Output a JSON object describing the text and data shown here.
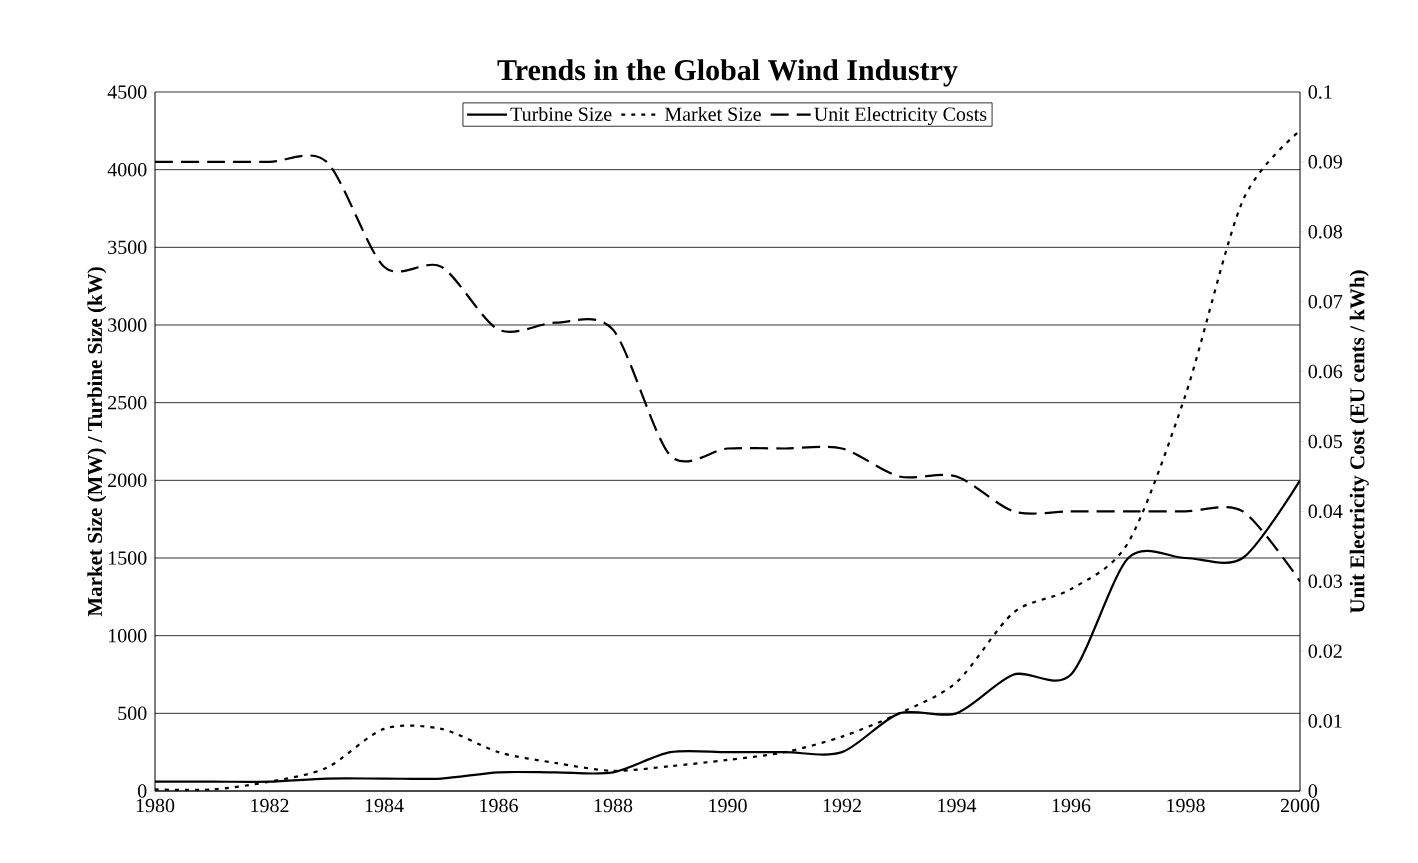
{
  "chart_data": {
    "type": "line",
    "title": "Trends in the Global Wind Industry",
    "ylabel": "Market Size (MW) / Turbine Size (kW)",
    "y2label": "Unit Electricity Cost (EU cents / kWh)",
    "x": [
      1980,
      1981,
      1982,
      1983,
      1984,
      1985,
      1986,
      1987,
      1988,
      1989,
      1990,
      1991,
      1992,
      1993,
      1994,
      1995,
      1996,
      1997,
      1998,
      1999,
      2000
    ],
    "series": [
      {
        "name": "Turbine Size",
        "color": "#000000",
        "line_style": "solid",
        "values": [
          60,
          60,
          60,
          80,
          80,
          80,
          120,
          120,
          120,
          250,
          250,
          250,
          250,
          500,
          500,
          750,
          750,
          1500,
          1500,
          1500,
          2000
        ]
      },
      {
        "name": "Market Size",
        "color": "#000000",
        "line_style": "dotted",
        "values": [
          10,
          10,
          60,
          150,
          400,
          400,
          250,
          180,
          130,
          160,
          200,
          250,
          350,
          500,
          700,
          1150,
          1300,
          1600,
          2550,
          3800,
          4250
        ]
      },
      {
        "name": "Unit Electricity Costs",
        "color": "#000000",
        "line_style": "dashed",
        "axis": "y2",
        "values": [
          0.09,
          0.09,
          0.09,
          0.09,
          0.075,
          0.075,
          0.066,
          0.067,
          0.066,
          0.048,
          0.049,
          0.049,
          0.049,
          0.045,
          0.045,
          0.04,
          0.04,
          0.04,
          0.04,
          0.04,
          0.03
        ]
      }
    ],
    "xlim": [
      1980,
      2000
    ],
    "xticks": [
      1980,
      1982,
      1984,
      1986,
      1988,
      1990,
      1992,
      1994,
      1996,
      1998,
      2000
    ],
    "ylim": [
      0,
      4500
    ],
    "yticks": [
      0,
      500,
      1000,
      1500,
      2000,
      2500,
      3000,
      3500,
      4000,
      4500
    ],
    "y2lim": [
      0,
      0.1
    ],
    "y2ticks": [
      0,
      0.01,
      0.02,
      0.03,
      0.04,
      0.05,
      0.06,
      0.07,
      0.08,
      0.09,
      0.1
    ],
    "grid": "y",
    "legend": "top",
    "marker": "none"
  }
}
